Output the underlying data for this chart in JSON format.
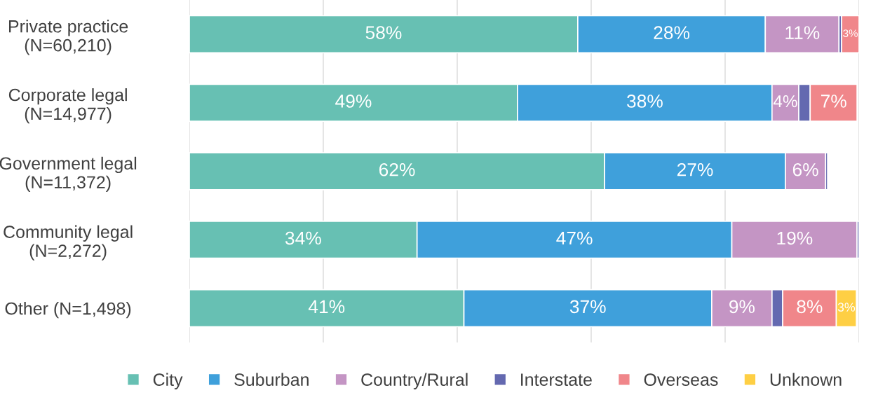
{
  "chart_data": {
    "type": "bar",
    "orientation": "horizontal",
    "stacked": true,
    "categories": [
      "Private practice\n(N=60,210)",
      "Corporate legal\n(N=14,977)",
      "Government legal\n(N=11,372)",
      "Community legal\n(N=2,272)",
      "Other (N=1,498)"
    ],
    "series": [
      {
        "name": "City",
        "color": "#67c0b3",
        "values": [
          58,
          49,
          62,
          34,
          41
        ],
        "value_labels": [
          "58%",
          "49%",
          "62%",
          "34%",
          "41%"
        ]
      },
      {
        "name": "Suburban",
        "color": "#3fa0db",
        "values": [
          28,
          38,
          27,
          47,
          37
        ],
        "value_labels": [
          "28%",
          "38%",
          "27%",
          "47%",
          "37%"
        ]
      },
      {
        "name": "Country/Rural",
        "color": "#c495c4",
        "values": [
          11,
          4,
          6,
          18.7,
          9
        ],
        "value_labels": [
          "11%",
          "4%",
          "6%",
          "19%",
          "9%"
        ]
      },
      {
        "name": "Interstate",
        "color": "#6469b0",
        "values": [
          0.4,
          1.7,
          0.3,
          0.3,
          1.6
        ],
        "value_labels": [
          null,
          null,
          null,
          null,
          null
        ]
      },
      {
        "name": "Overseas",
        "color": "#f0868a",
        "values": [
          2.6,
          7,
          null,
          null,
          8
        ],
        "value_labels": [
          "3%",
          "7%",
          null,
          null,
          "8%"
        ]
      },
      {
        "name": "Unknown",
        "color": "#fecf44",
        "values": [
          null,
          null,
          null,
          null,
          3
        ],
        "value_labels": [
          null,
          null,
          null,
          null,
          "3%"
        ]
      }
    ],
    "xlim": [
      0,
      100
    ],
    "xticks": [
      {
        "value": 0,
        "label": null
      },
      {
        "value": 20,
        "label": null
      },
      {
        "value": 40,
        "label": null
      },
      {
        "value": 60,
        "label": null
      },
      {
        "value": 80,
        "label": null
      },
      {
        "value": 100,
        "label": null
      }
    ],
    "grid": "x",
    "tick_labels": "y",
    "legend": "bottom"
  }
}
